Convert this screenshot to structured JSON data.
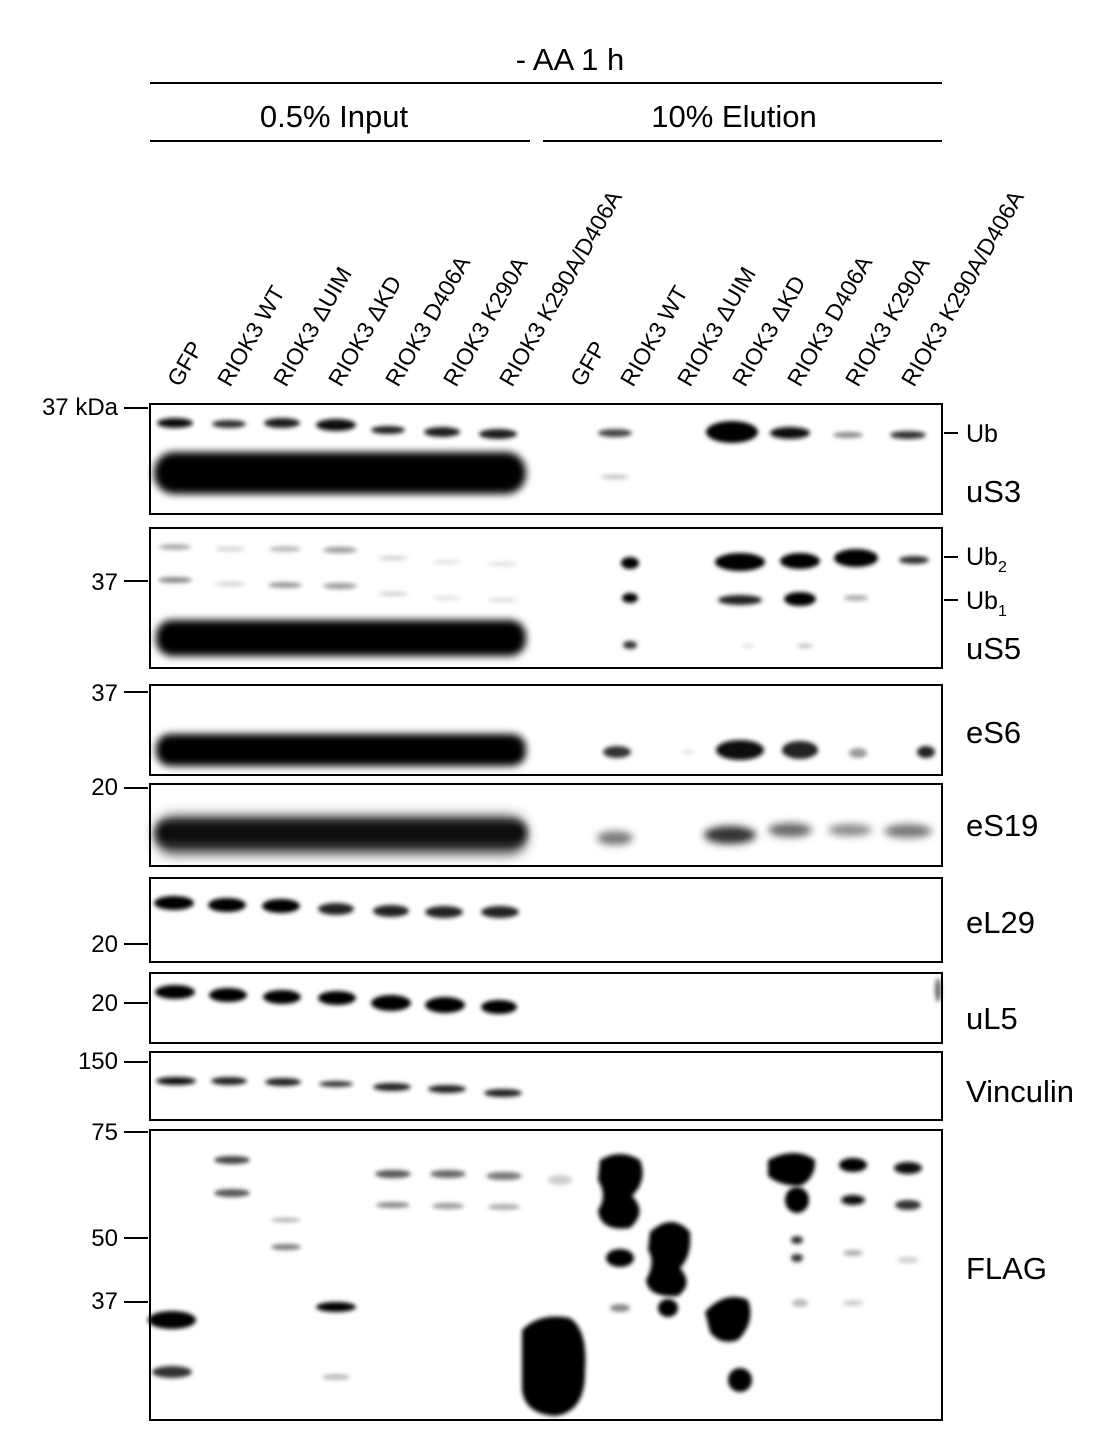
{
  "figure": {
    "condition": "- AA 1 h",
    "groups": [
      {
        "label": "0.5% Input"
      },
      {
        "label": "10% Elution"
      }
    ],
    "lanes": [
      "GFP",
      "RIOK3 WT",
      "RIOK3 ΔUIM",
      "RIOK3 ΔKD",
      "RIOK3 D406A",
      "RIOK3 K290A",
      "RIOK3 K290A/D406A",
      "GFP",
      "RIOK3 WT",
      "RIOK3 ΔUIM",
      "RIOK3 ΔKD",
      "RIOK3 D406A",
      "RIOK3 K290A",
      "RIOK3 K290A/D406A"
    ],
    "panels": [
      {
        "label": "uS3",
        "markers": [
          "37 kDa"
        ],
        "bands": [
          "Ub"
        ]
      },
      {
        "label": "uS5",
        "markers": [
          "37"
        ],
        "bands": [
          "Ub2",
          "Ub1"
        ]
      },
      {
        "label": "eS6",
        "markers": [
          "37"
        ],
        "bands": []
      },
      {
        "label": "eS19",
        "markers": [
          "20"
        ],
        "bands": []
      },
      {
        "label": "eL29",
        "markers": [
          "20"
        ],
        "bands": []
      },
      {
        "label": "uL5",
        "markers": [
          "20"
        ],
        "bands": []
      },
      {
        "label": "Vinculin",
        "markers": [
          "150"
        ],
        "bands": []
      },
      {
        "label": "FLAG",
        "markers": [
          "75",
          "50",
          "37"
        ],
        "bands": []
      }
    ]
  }
}
